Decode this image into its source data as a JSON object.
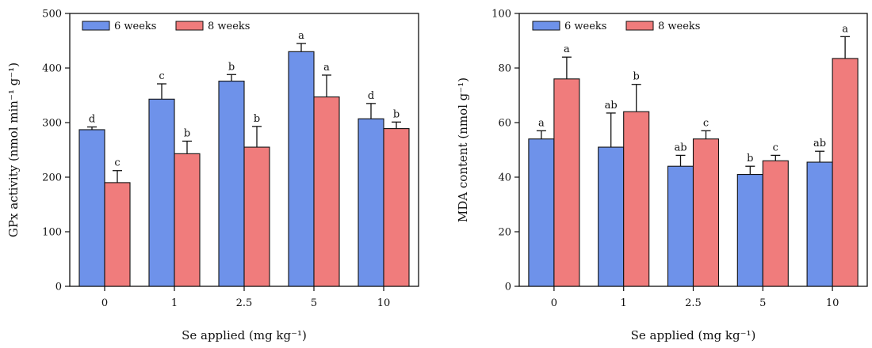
{
  "chart_data": [
    {
      "type": "bar",
      "id": "gpx",
      "categories": [
        "0",
        "1",
        "2.5",
        "5",
        "10"
      ],
      "series": [
        {
          "name": "6 weeks",
          "color": "#6E92EA",
          "values": [
            287,
            343,
            376,
            430,
            307
          ],
          "errors": [
            5,
            28,
            12,
            15,
            28
          ],
          "labels": [
            "d",
            "c",
            "b",
            "a",
            "d"
          ]
        },
        {
          "name": "8 weeks",
          "color": "#F07C7C",
          "values": [
            190,
            243,
            255,
            347,
            289
          ],
          "errors": [
            22,
            23,
            38,
            40,
            12
          ],
          "labels": [
            "c",
            "b",
            "b",
            "a",
            "b"
          ]
        }
      ],
      "ylim": [
        0,
        500
      ],
      "yticks": [
        0,
        100,
        200,
        300,
        400,
        500
      ],
      "xlabel": "Se applied (mg kg⁻¹)",
      "ylabel": "GPx activity (nmol min⁻¹ g⁻¹)",
      "legend_position": "top-left"
    },
    {
      "type": "bar",
      "id": "mda",
      "categories": [
        "0",
        "1",
        "2.5",
        "5",
        "10"
      ],
      "series": [
        {
          "name": "6 weeks",
          "color": "#6E92EA",
          "values": [
            54,
            51,
            44,
            41,
            45.5
          ],
          "errors": [
            3,
            12.5,
            4,
            3,
            4
          ],
          "labels": [
            "a",
            "ab",
            "ab",
            "b",
            "ab"
          ]
        },
        {
          "name": "8 weeks",
          "color": "#F07C7C",
          "values": [
            76,
            64,
            54,
            46,
            83.5
          ],
          "errors": [
            8,
            10,
            3,
            2,
            8
          ],
          "labels": [
            "a",
            "b",
            "c",
            "c",
            "a"
          ]
        }
      ],
      "ylim": [
        0,
        100
      ],
      "yticks": [
        0,
        20,
        40,
        60,
        80,
        100
      ],
      "xlabel": "Se applied (mg kg⁻¹)",
      "ylabel": "MDA content (nmol g⁻¹)",
      "legend_position": "top-left"
    }
  ]
}
